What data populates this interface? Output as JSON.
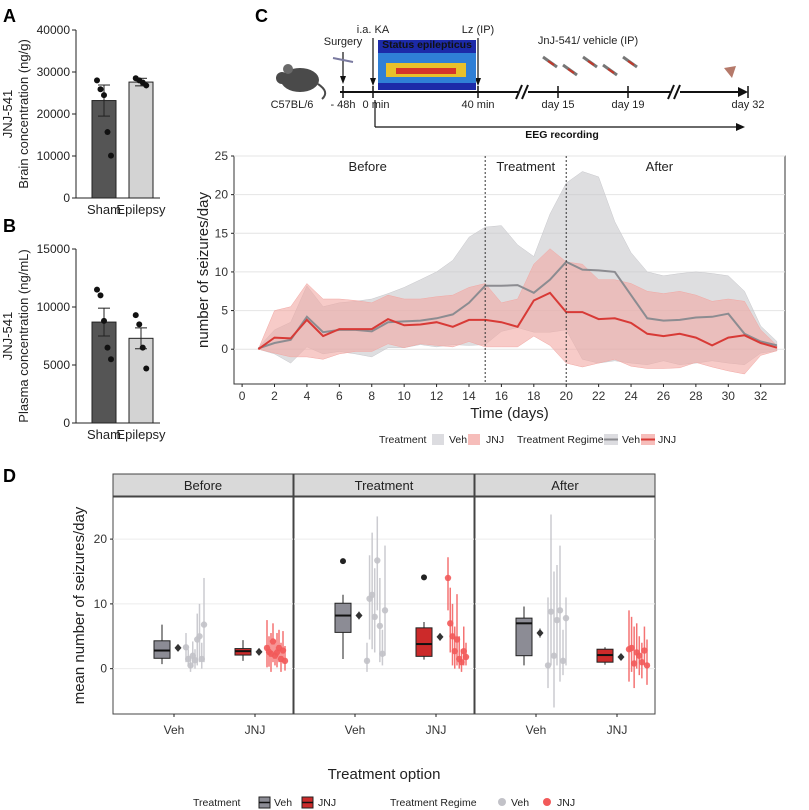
{
  "panels": {
    "A": {
      "letter": "A",
      "chart_data": {
        "type": "bar",
        "title": "",
        "ylabel_line1": "JNJ-541",
        "ylabel_line2": "Brain concentration (ng/g)",
        "categories": [
          "Sham",
          "Epilepsy"
        ],
        "values": [
          23200,
          27600
        ],
        "sem": [
          3700,
          900
        ],
        "points": [
          [
            28000,
            25900,
            24500,
            15700,
            10100
          ],
          [
            28500,
            28000,
            27500,
            26800
          ]
        ],
        "ylim": [
          0,
          40000
        ],
        "yticks": [
          "0",
          "10000",
          "20000",
          "30000",
          "40000"
        ],
        "colors": [
          "#555555",
          "#d3d3d3"
        ]
      }
    },
    "B": {
      "letter": "B",
      "chart_data": {
        "type": "bar",
        "title": "",
        "ylabel_line1": "JNJ-541",
        "ylabel_line2": "Plasma concentration (ng/mL)",
        "categories": [
          "Sham",
          "Epilepsy"
        ],
        "values": [
          8700,
          7300
        ],
        "sem": [
          1200,
          900
        ],
        "points": [
          [
            11500,
            11000,
            8800,
            6500,
            5500
          ],
          [
            9300,
            8500,
            6500,
            4700
          ]
        ],
        "ylim": [
          0,
          15000
        ],
        "yticks": [
          "0",
          "5000",
          "10000",
          "15000"
        ],
        "colors": [
          "#555555",
          "#d3d3d3"
        ]
      }
    },
    "C": {
      "letter": "C",
      "timeline": {
        "mouse_label": "C57BL/6",
        "surgery": "Surgery",
        "ia_ka": "i.a. KA",
        "lz": "Lz (IP)",
        "status": "Status epilepticus",
        "jnj_vehicle": "JnJ-541/ vehicle (IP)",
        "t_minus48": "- 48h",
        "t_0": "0 min",
        "t_40": "40 min",
        "day15": "day 15",
        "day19": "day 19",
        "day32": "day 32",
        "eeg": "EEG recording"
      },
      "chart_data": {
        "type": "line",
        "xlabel": "Time (days)",
        "ylabel": "number of seizures/day",
        "xlim": [
          -0.5,
          33.5
        ],
        "ylim": [
          -4.5,
          25
        ],
        "xticks": [
          0,
          2,
          4,
          6,
          8,
          10,
          12,
          14,
          16,
          18,
          20,
          22,
          24,
          26,
          28,
          30,
          32
        ],
        "yticks": [
          0,
          5,
          10,
          15,
          20,
          25
        ],
        "phases": [
          "Before",
          "Treatment",
          "After"
        ],
        "phase_boundaries": [
          15,
          20
        ],
        "x": [
          1,
          2,
          3,
          4,
          5,
          6,
          7,
          8,
          9,
          10,
          11,
          12,
          13,
          14,
          15,
          16,
          17,
          18,
          19,
          20,
          21,
          22,
          23,
          24,
          25,
          26,
          27,
          28,
          29,
          30,
          31,
          32,
          33
        ],
        "series": [
          {
            "name": "Veh",
            "color": "#8c8c91",
            "fill": "#c8c8cc",
            "values": [
              0.1,
              0.8,
              1.2,
              4.2,
              2.2,
              2.5,
              2.5,
              2.3,
              3.5,
              3.6,
              3.7,
              4.0,
              4.5,
              6.0,
              8.2,
              8.2,
              8.3,
              7.3,
              9.0,
              11.3,
              10.3,
              10.2,
              10.0,
              7.0,
              4.0,
              3.7,
              3.8,
              4.1,
              4.2,
              4.6,
              2.0,
              1.0,
              0.5
            ],
            "lower": [
              0.0,
              -0.6,
              -1.8,
              0.3,
              -0.6,
              -0.3,
              -0.6,
              -1.0,
              0.2,
              0.2,
              0.6,
              0.3,
              0.6,
              0.5,
              0.6,
              2.3,
              2.8,
              2.2,
              2.2,
              2.5,
              -1.3,
              -1.8,
              -1.5,
              -1.8,
              -2.0,
              -1.5,
              -2.0,
              -1.8,
              -1.5,
              -1.8,
              -2.0,
              -0.5,
              -0.2
            ],
            "upper": [
              0.2,
              2.5,
              3.5,
              8.2,
              5.5,
              6.0,
              6.2,
              6.5,
              7.2,
              8.0,
              9.0,
              10.0,
              11.5,
              14.5,
              15.8,
              16.0,
              13.5,
              12.0,
              17.5,
              21.5,
              23.0,
              22.3,
              16.5,
              12.5,
              10.0,
              9.5,
              9.8,
              10.0,
              9.8,
              9.5,
              7.5,
              3.0,
              1.0
            ]
          },
          {
            "name": "JNJ",
            "color": "#d83a36",
            "fill": "#f2a8a4",
            "values": [
              0.0,
              1.5,
              1.4,
              3.8,
              1.7,
              2.6,
              2.6,
              2.6,
              3.9,
              3.1,
              3.2,
              3.5,
              2.9,
              3.8,
              3.8,
              3.5,
              2.9,
              6.3,
              7.3,
              4.8,
              4.8,
              3.9,
              4.0,
              3.4,
              2.0,
              1.7,
              2.0,
              1.5,
              0.5,
              1.5,
              1.8,
              0.8,
              0.2
            ],
            "lower": [
              0.0,
              -0.5,
              -1.0,
              -1.0,
              -1.3,
              -0.6,
              -0.3,
              -0.3,
              0.7,
              0.2,
              0.7,
              0.5,
              0.3,
              1.0,
              0.3,
              0.3,
              0.3,
              1.7,
              0.5,
              -1.8,
              -2.3,
              -1.8,
              -1.3,
              -2.2,
              -2.5,
              -2.5,
              -2.4,
              -1.7,
              -2.3,
              -2.8,
              -3.2,
              -0.8,
              -0.2
            ],
            "upper": [
              0.0,
              5.0,
              5.5,
              8.5,
              6.5,
              6.5,
              6.3,
              6.0,
              7.0,
              6.5,
              6.5,
              6.8,
              7.0,
              8.0,
              8.5,
              6.0,
              6.5,
              11.0,
              13.0,
              11.3,
              11.0,
              9.0,
              9.0,
              8.5,
              7.5,
              7.2,
              7.5,
              7.0,
              6.2,
              6.5,
              6.2,
              2.5,
              0.5
            ]
          }
        ],
        "legend": {
          "treatment_title": "Treatment",
          "treatment_items": [
            "Veh",
            "JNJ"
          ],
          "regime_title": "Treatment Regime",
          "regime_items": [
            "Veh",
            "JNJ"
          ]
        }
      }
    },
    "D": {
      "letter": "D",
      "chart_data": {
        "type": "box",
        "xlabel": "Treatment option",
        "ylabel": "mean number of seizures/day",
        "ylim": [
          -7,
          26.5
        ],
        "yticks": [
          0,
          10,
          20
        ],
        "facets": [
          "Before",
          "Treatment",
          "After"
        ],
        "categories": [
          "Veh",
          "JNJ"
        ],
        "colors": {
          "Veh": "#8c8c95",
          "JNJ": "#cc2a2a",
          "Veh_points": "#c2c2c8",
          "JNJ_points": "#f25a5a"
        },
        "groups": [
          {
            "facet": "Before",
            "Veh": {
              "box": [
                0.7,
                1.6,
                2.8,
                4.3,
                6.8
              ],
              "mean": 3.2,
              "sem": 0.5,
              "points": [
                3.3,
                1.5,
                0.5,
                2.0,
                1.3,
                4.5,
                5.0,
                1.5,
                6.8
              ],
              "ranges": [
                [
                  1.0,
                  5.5
                ],
                [
                  0.5,
                  3.0
                ],
                [
                  -0.5,
                  2.0
                ],
                [
                  0.2,
                  4.2
                ],
                [
                  0.0,
                  3.0
                ],
                [
                  0.5,
                  8.5
                ],
                [
                  1.0,
                  10.0
                ],
                [
                  0.0,
                  4.0
                ],
                [
                  1.0,
                  14.0
                ]
              ]
            },
            "JNJ": {
              "box": [
                1.2,
                2.1,
                2.7,
                3.1,
                4.4
              ],
              "mean": 2.6,
              "sem": 0.3,
              "points": [
                3.2,
                2.6,
                2.3,
                4.2,
                2.0,
                2.5,
                3.2,
                1.5,
                2.8,
                1.2
              ],
              "ranges": [
                [
                  0.2,
                  7.5
                ],
                [
                  0.3,
                  5.0
                ],
                [
                  -0.5,
                  5.5
                ],
                [
                  1.0,
                  7.0
                ],
                [
                  0.5,
                  4.5
                ],
                [
                  0.2,
                  5.5
                ],
                [
                  1.0,
                  6.0
                ],
                [
                  -0.5,
                  4.0
                ],
                [
                  0.8,
                  5.8
                ],
                [
                  -0.3,
                  3.5
                ]
              ]
            }
          },
          {
            "facet": "Treatment",
            "Veh": {
              "box": [
                1.5,
                5.6,
                8.2,
                10.1,
                11.4
              ],
              "mean": 8.2,
              "sem": 0.6,
              "outliers": [
                16.6
              ],
              "points": [
                1.2,
                10.8,
                11.4,
                8.0,
                16.7,
                6.6,
                2.3,
                9.0
              ],
              "ranges": [
                [
                  -0.5,
                  4.0
                ],
                [
                  4.5,
                  17.5
                ],
                [
                  3.0,
                  21.0
                ],
                [
                  2.5,
                  15.5
                ],
                [
                  9.0,
                  23.5
                ],
                [
                  1.0,
                  14.0
                ],
                [
                  0.5,
                  6.0
                ],
                [
                  2.0,
                  19.0
                ]
              ]
            },
            "JNJ": {
              "box": [
                1.4,
                1.9,
                3.8,
                6.3,
                7.2
              ],
              "mean": 4.9,
              "sem": 0.6,
              "outliers": [
                14.1
              ],
              "points": [
                14.0,
                7.0,
                5.0,
                2.7,
                4.5,
                1.5,
                1.0,
                2.7,
                1.8
              ],
              "ranges": [
                [
                  9.0,
                  17.2
                ],
                [
                  2.5,
                  12.5
                ],
                [
                  0.5,
                  10.0
                ],
                [
                  0.0,
                  6.5
                ],
                [
                  0.5,
                  11.5
                ],
                [
                  0.0,
                  5.0
                ],
                [
                  -0.5,
                  3.0
                ],
                [
                  0.5,
                  6.5
                ],
                [
                  0.5,
                  4.0
                ]
              ]
            }
          },
          {
            "facet": "After",
            "Veh": {
              "box": [
                0.5,
                2.0,
                7.0,
                7.8,
                9.6
              ],
              "mean": 5.5,
              "sem": 0.7,
              "points": [
                0.5,
                8.8,
                2.0,
                7.5,
                9.0,
                1.2,
                7.8
              ],
              "ranges": [
                [
                  -3.0,
                  11.0
                ],
                [
                  0.5,
                  23.8
                ],
                [
                  -6.0,
                  15.0
                ],
                [
                  0.5,
                  16.0
                ],
                [
                  -2.0,
                  19.0
                ],
                [
                  -1.0,
                  6.0
                ],
                [
                  0.5,
                  11.0
                ]
              ]
            },
            "JNJ": {
              "box": [
                0.6,
                1.0,
                2.1,
                3.0,
                3.3
              ],
              "mean": 1.8,
              "sem": 0.4,
              "points": [
                3.0,
                3.2,
                0.8,
                2.5,
                2.0,
                1.0,
                2.8,
                0.5
              ],
              "ranges": [
                [
                  -2.0,
                  9.0
                ],
                [
                  -0.5,
                  8.0
                ],
                [
                  -3.0,
                  6.5
                ],
                [
                  0.0,
                  7.0
                ],
                [
                  -1.0,
                  5.0
                ],
                [
                  -1.5,
                  4.0
                ],
                [
                  0.5,
                  6.5
                ],
                [
                  -2.5,
                  4.5
                ]
              ]
            }
          }
        ],
        "legend": {
          "treatment_title": "Treatment",
          "treatment_items": [
            "Veh",
            "JNJ"
          ],
          "regime_title": "Treatment Regime",
          "regime_items": [
            "Veh",
            "JNJ"
          ]
        }
      }
    }
  }
}
